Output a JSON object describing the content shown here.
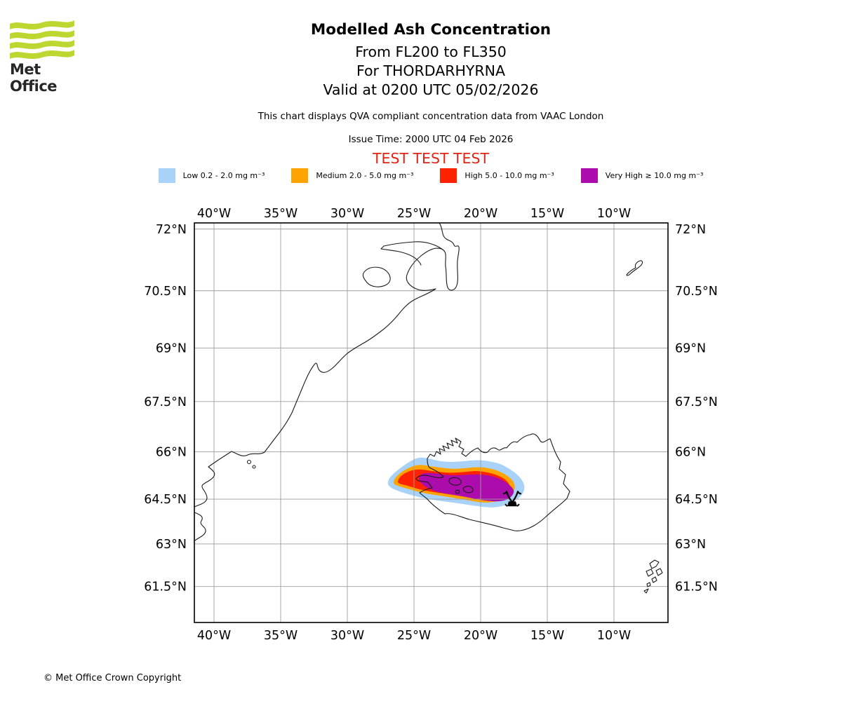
{
  "header": {
    "logo_text": "Met Office",
    "title": "Modelled Ash Concentration",
    "subtitle_levels": "From FL200 to FL350",
    "subtitle_volcano": "For THORDARHYRNA",
    "subtitle_valid": "Valid at 0200 UTC 05/02/2026",
    "note": "This chart displays QVA compliant concentration data from VAAC London",
    "issue_time": "Issue Time: 2000 UTC 04 Feb 2026",
    "test_banner": "TEST TEST TEST",
    "test_banner_color": "#e02416",
    "logo_color": "#bed630"
  },
  "legend": {
    "items": [
      {
        "key": "low",
        "label": "Low 0.2 - 2.0 mg m⁻³",
        "color": "#a8d2f7"
      },
      {
        "key": "medium",
        "label": "Medium 2.0 - 5.0 mg m⁻³",
        "color": "#ffa300"
      },
      {
        "key": "high",
        "label": "High 5.0 - 10.0 mg m⁻³",
        "color": "#ff2200"
      },
      {
        "key": "very-high",
        "label": "Very High ≥ 10.0 mg m⁻³",
        "color": "#ac0cac"
      }
    ]
  },
  "map": {
    "grid_color": "#9e9e9e",
    "frame_color": "#000000",
    "coast_color": "#1a1a1a",
    "lon_ticks": [
      {
        "label": "40°W",
        "lon": -40
      },
      {
        "label": "35°W",
        "lon": -35
      },
      {
        "label": "30°W",
        "lon": -30
      },
      {
        "label": "25°W",
        "lon": -25
      },
      {
        "label": "20°W",
        "lon": -20
      },
      {
        "label": "15°W",
        "lon": -15
      },
      {
        "label": "10°W",
        "lon": -10
      }
    ],
    "lat_ticks": [
      {
        "label": "72°N",
        "lat": 72
      },
      {
        "label": "70.5°N",
        "lat": 70.5
      },
      {
        "label": "69°N",
        "lat": 69
      },
      {
        "label": "67.5°N",
        "lat": 67.5
      },
      {
        "label": "66°N",
        "lat": 66
      },
      {
        "label": "64.5°N",
        "lat": 64.5
      },
      {
        "label": "63°N",
        "lat": 63
      },
      {
        "label": "61.5°N",
        "lat": 61.5
      }
    ]
  },
  "chart_data": {
    "type": "contour_map",
    "units": "mg m⁻³",
    "volcano": {
      "name": "THORDARHYRNA",
      "lon": -17.63,
      "lat": 64.45
    },
    "plume_contours": [
      {
        "level": "Low",
        "range": "0.2 - 2.0",
        "color": "#a8d2f7",
        "points": [
          [
            -27.0,
            64.98
          ],
          [
            -26.89,
            65.16
          ],
          [
            -26.47,
            65.35
          ],
          [
            -25.95,
            65.52
          ],
          [
            -25.32,
            65.7
          ],
          [
            -24.63,
            65.84
          ],
          [
            -23.84,
            65.79
          ],
          [
            -23.0,
            65.7
          ],
          [
            -22.11,
            65.68
          ],
          [
            -21.21,
            65.71
          ],
          [
            -20.26,
            65.75
          ],
          [
            -19.32,
            65.71
          ],
          [
            -18.47,
            65.62
          ],
          [
            -17.79,
            65.46
          ],
          [
            -17.16,
            65.26
          ],
          [
            -16.79,
            65.05
          ],
          [
            -16.68,
            64.85
          ],
          [
            -16.89,
            64.63
          ],
          [
            -17.37,
            64.45
          ],
          [
            -18.05,
            64.31
          ],
          [
            -18.89,
            64.22
          ],
          [
            -19.84,
            64.24
          ],
          [
            -20.89,
            64.31
          ],
          [
            -21.95,
            64.38
          ],
          [
            -23.0,
            64.44
          ],
          [
            -24.05,
            64.51
          ],
          [
            -25.11,
            64.62
          ],
          [
            -26.05,
            64.74
          ],
          [
            -26.68,
            64.85
          ]
        ]
      },
      {
        "level": "Medium",
        "range": "2.0 - 5.0",
        "color": "#ffa300",
        "points": [
          [
            -26.58,
            65.01
          ],
          [
            -26.42,
            65.19
          ],
          [
            -25.95,
            65.37
          ],
          [
            -25.32,
            65.52
          ],
          [
            -24.63,
            65.61
          ],
          [
            -23.79,
            65.55
          ],
          [
            -22.89,
            65.5
          ],
          [
            -21.95,
            65.46
          ],
          [
            -21.0,
            65.5
          ],
          [
            -20.05,
            65.53
          ],
          [
            -19.21,
            65.48
          ],
          [
            -18.47,
            65.37
          ],
          [
            -17.84,
            65.21
          ],
          [
            -17.47,
            65.03
          ],
          [
            -17.42,
            64.83
          ],
          [
            -17.68,
            64.63
          ],
          [
            -18.21,
            64.49
          ],
          [
            -19.0,
            64.4
          ],
          [
            -19.84,
            64.38
          ],
          [
            -20.79,
            64.45
          ],
          [
            -21.84,
            64.53
          ],
          [
            -22.89,
            64.6
          ],
          [
            -23.95,
            64.67
          ],
          [
            -24.89,
            64.76
          ],
          [
            -25.74,
            64.87
          ],
          [
            -26.32,
            64.94
          ]
        ]
      },
      {
        "level": "High",
        "range": "5.0 - 10.0",
        "color": "#ff2200",
        "points": [
          [
            -26.26,
            65.05
          ],
          [
            -26.05,
            65.23
          ],
          [
            -25.53,
            65.37
          ],
          [
            -24.84,
            65.46
          ],
          [
            -24.05,
            65.43
          ],
          [
            -23.16,
            65.37
          ],
          [
            -22.21,
            65.34
          ],
          [
            -21.21,
            65.37
          ],
          [
            -20.26,
            65.41
          ],
          [
            -19.37,
            65.35
          ],
          [
            -18.68,
            65.26
          ],
          [
            -18.16,
            65.14
          ],
          [
            -17.84,
            64.99
          ],
          [
            -17.79,
            64.81
          ],
          [
            -18.05,
            64.65
          ],
          [
            -18.63,
            64.53
          ],
          [
            -19.42,
            64.47
          ],
          [
            -20.32,
            64.53
          ],
          [
            -21.42,
            64.6
          ],
          [
            -22.58,
            64.67
          ],
          [
            -23.74,
            64.74
          ],
          [
            -24.74,
            64.83
          ],
          [
            -25.53,
            64.94
          ],
          [
            -26.05,
            64.99
          ]
        ]
      },
      {
        "level": "Very High",
        "range": "≥ 10.0",
        "color": "#ac0cac",
        "points": [
          [
            -24.68,
            65.19
          ],
          [
            -24.47,
            65.32
          ],
          [
            -23.84,
            65.35
          ],
          [
            -23.0,
            65.3
          ],
          [
            -22.11,
            65.26
          ],
          [
            -21.16,
            65.28
          ],
          [
            -20.21,
            65.3
          ],
          [
            -19.32,
            65.26
          ],
          [
            -18.63,
            65.17
          ],
          [
            -18.11,
            65.05
          ],
          [
            -17.68,
            64.9
          ],
          [
            -17.47,
            64.76
          ],
          [
            -17.63,
            64.6
          ],
          [
            -18.05,
            64.47
          ],
          [
            -18.68,
            64.42
          ],
          [
            -19.42,
            64.44
          ],
          [
            -20.21,
            64.49
          ],
          [
            -21.21,
            64.58
          ],
          [
            -22.21,
            64.65
          ],
          [
            -23.21,
            64.72
          ],
          [
            -24.05,
            64.87
          ],
          [
            -24.53,
            65.03
          ]
        ]
      }
    ]
  },
  "footer": {
    "copyright": "© Met Office Crown Copyright"
  }
}
